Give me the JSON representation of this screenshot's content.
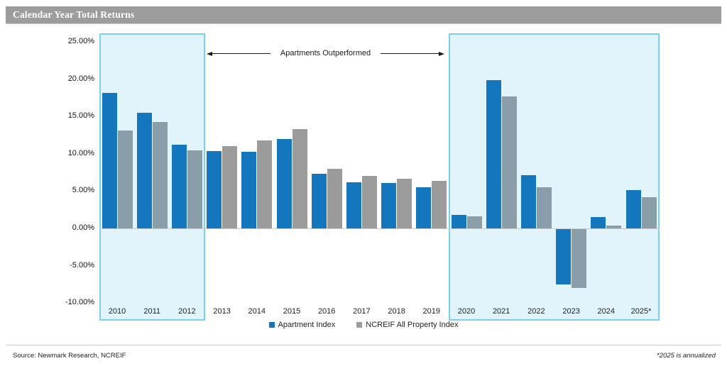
{
  "header": {
    "title": "Calendar Year Total Returns"
  },
  "annotation": {
    "label": "Apartments Outperformed"
  },
  "legend": [
    {
      "label": "Apartment Index",
      "color": "#1477BE"
    },
    {
      "label": "NCREIF All Property Index",
      "color": "#9B9B9B"
    }
  ],
  "footer": {
    "source": "Source: Newmark Research, NCREIF",
    "note": "*2025 is annualized"
  },
  "chart_data": {
    "type": "bar",
    "title": "Calendar Year Total Returns",
    "categories": [
      "2010",
      "2011",
      "2012",
      "2013",
      "2014",
      "2015",
      "2016",
      "2017",
      "2018",
      "2019",
      "2020",
      "2021",
      "2022",
      "2023",
      "2024",
      "2025*"
    ],
    "series": [
      {
        "name": "Apartment Index",
        "color": "#1477BE",
        "values": [
          18.2,
          15.5,
          11.2,
          10.4,
          10.3,
          12.0,
          7.3,
          6.2,
          6.1,
          5.5,
          1.8,
          19.9,
          7.1,
          -7.4,
          1.5,
          5.1
        ]
      },
      {
        "name": "NCREIF All Property Index",
        "color": "#9B9B9B",
        "highlight_color": "#8A9EA9",
        "values": [
          13.1,
          14.3,
          10.5,
          11.0,
          11.8,
          13.3,
          8.0,
          7.0,
          6.7,
          6.4,
          1.6,
          17.7,
          5.5,
          -7.9,
          0.4,
          4.2
        ]
      }
    ],
    "ylabel": "",
    "ylim": [
      -10,
      25
    ],
    "yticks": [
      "25.00%",
      "20.00%",
      "15.00%",
      "10.00%",
      "5.00%",
      "0.00%",
      "-5.00%",
      "-10.00%"
    ],
    "grid": false,
    "legend_position": "bottom",
    "annotation": "Apartments Outperformed",
    "highlight_ranges": [
      {
        "from": "2010",
        "to": "2012"
      },
      {
        "from": "2020",
        "to": "2025*"
      }
    ],
    "highlight_fill": "#E1F4FB",
    "highlight_border": "#7ECFE8"
  }
}
